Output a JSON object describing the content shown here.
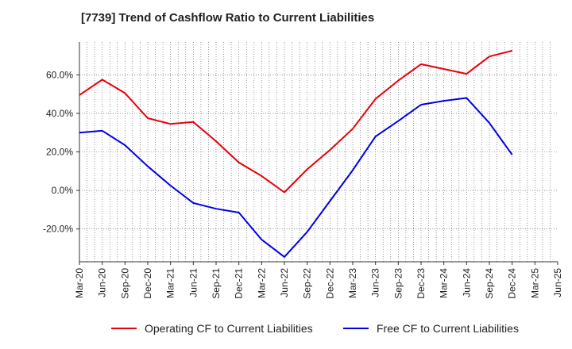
{
  "chart_data": {
    "type": "line",
    "title": "[7739]  Trend of Cashflow Ratio to Current Liabilities",
    "xlabel": "",
    "ylabel": "",
    "categories": [
      "Mar-20",
      "Jun-20",
      "Sep-20",
      "Dec-20",
      "Mar-21",
      "Jun-21",
      "Sep-21",
      "Dec-21",
      "Mar-22",
      "Jun-22",
      "Sep-22",
      "Dec-22",
      "Mar-23",
      "Jun-23",
      "Sep-23",
      "Dec-23",
      "Mar-24",
      "Jun-24",
      "Sep-24",
      "Dec-24",
      "Mar-25",
      "Jun-25"
    ],
    "ylim": [
      -37.0,
      77.0
    ],
    "yticks": [
      -20,
      0,
      20,
      40,
      60
    ],
    "ytick_labels": [
      "-20.0%",
      "0.0%",
      "20.0%",
      "40.0%",
      "60.0%"
    ],
    "grid": true,
    "legend_position": "bottom",
    "series": [
      {
        "name": "Operating CF to Current Liabilities",
        "color": "#e8000b",
        "values": [
          49.5,
          57.5,
          50.5,
          37.5,
          34.5,
          35.5,
          25.5,
          14.5,
          7.5,
          -1.0,
          11.0,
          21.0,
          32.0,
          47.5,
          57.0,
          65.5,
          63.0,
          60.5,
          69.5,
          72.5,
          null,
          null
        ]
      },
      {
        "name": "Free CF to Current Liabilities",
        "color": "#0000e8",
        "values": [
          30.0,
          31.0,
          23.5,
          12.5,
          2.5,
          -6.5,
          -9.5,
          -11.5,
          -25.5,
          -34.5,
          -21.5,
          -5.5,
          10.5,
          28.0,
          36.0,
          44.5,
          46.5,
          48.0,
          35.0,
          18.5,
          null,
          null
        ]
      }
    ]
  }
}
